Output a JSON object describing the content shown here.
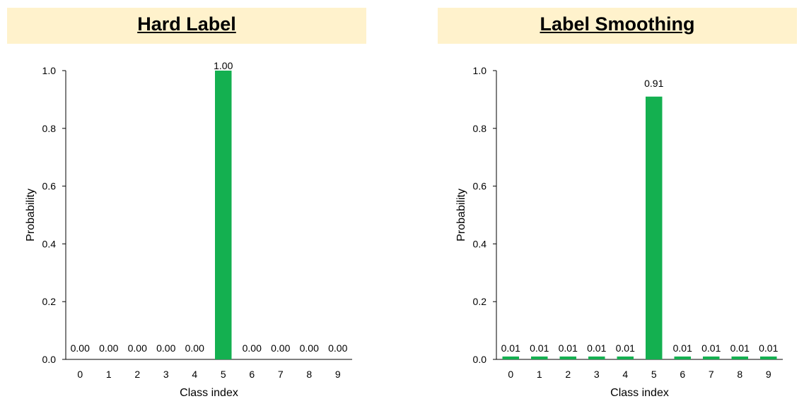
{
  "colors": {
    "bar": "#14B050",
    "banner": "#FFF2CC",
    "axis": "#000000"
  },
  "chart_data": [
    {
      "type": "bar",
      "title": "Hard Label",
      "xlabel": "Class index",
      "ylabel": "Probability",
      "categories": [
        "0",
        "1",
        "2",
        "3",
        "4",
        "5",
        "6",
        "7",
        "8",
        "9"
      ],
      "values": [
        0,
        0,
        0,
        0,
        0,
        1.0,
        0,
        0,
        0,
        0
      ],
      "data_labels": [
        "0.00",
        "0.00",
        "0.00",
        "0.00",
        "0.00",
        "1.00",
        "0.00",
        "0.00",
        "0.00",
        "0.00"
      ],
      "ylim": [
        0,
        1.0
      ],
      "yticks": [
        "0.0",
        "0.2",
        "0.4",
        "0.6",
        "0.8",
        "1.0"
      ],
      "grid": false,
      "legend": "none"
    },
    {
      "type": "bar",
      "title": "Label Smoothing",
      "xlabel": "Class index",
      "ylabel": "Probability",
      "categories": [
        "0",
        "1",
        "2",
        "3",
        "4",
        "5",
        "6",
        "7",
        "8",
        "9"
      ],
      "values": [
        0.01,
        0.01,
        0.01,
        0.01,
        0.01,
        0.91,
        0.01,
        0.01,
        0.01,
        0.01
      ],
      "data_labels": [
        "0.01",
        "0.01",
        "0.01",
        "0.01",
        "0.01",
        "0.91",
        "0.01",
        "0.01",
        "0.01",
        "0.01"
      ],
      "ylim": [
        0,
        1.0
      ],
      "yticks": [
        "0.0",
        "0.2",
        "0.4",
        "0.6",
        "0.8",
        "1.0"
      ],
      "grid": false,
      "legend": "none"
    }
  ]
}
